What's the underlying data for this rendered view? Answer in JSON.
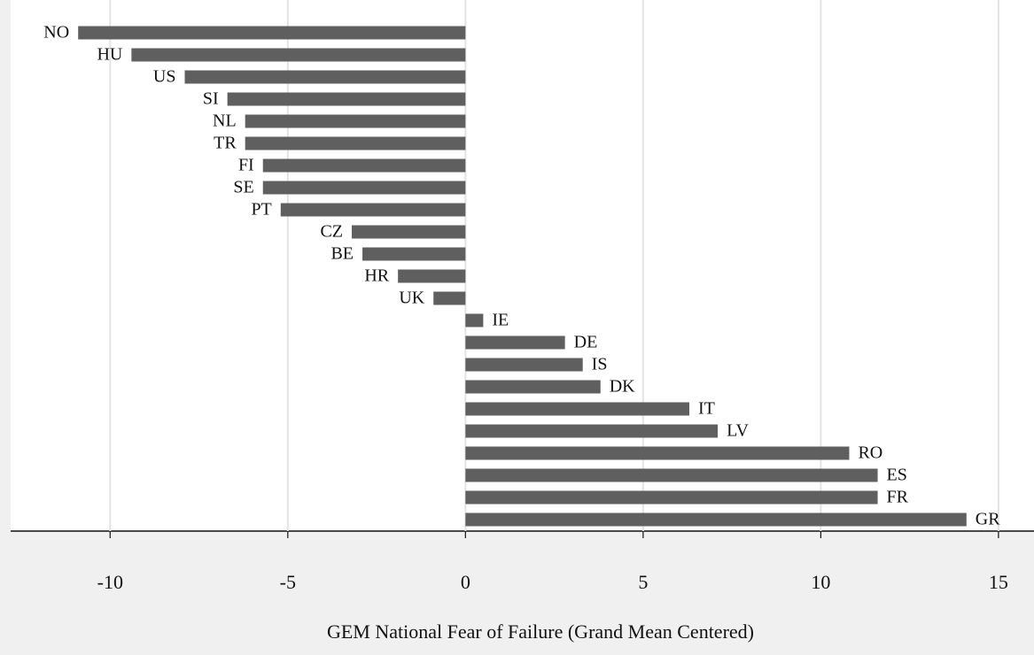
{
  "chart_data": {
    "type": "hbar",
    "x_label": "GEM National Fear of Failure (Grand Mean Centered)",
    "categories": [
      "NO",
      "HU",
      "US",
      "SI",
      "NL",
      "TR",
      "FI",
      "SE",
      "PT",
      "CZ",
      "BE",
      "HR",
      "UK",
      "IE",
      "DE",
      "IS",
      "DK",
      "IT",
      "LV",
      "RO",
      "ES",
      "FR",
      "GR"
    ],
    "values": [
      -10.9,
      -9.4,
      -7.9,
      -6.7,
      -6.2,
      -6.2,
      -5.7,
      -5.7,
      -5.2,
      -3.2,
      -2.9,
      -1.9,
      -0.9,
      0.5,
      2.8,
      3.3,
      3.8,
      6.3,
      7.1,
      10.8,
      11.6,
      11.6,
      14.1
    ],
    "color": "#5f5f5f",
    "xlim": [
      -12.8,
      16
    ],
    "xticks": [
      -10,
      -5,
      0,
      5,
      10,
      15
    ],
    "grid": true
  }
}
